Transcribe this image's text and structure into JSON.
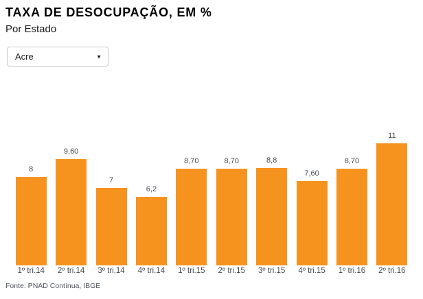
{
  "filter": {
    "selected": "Acre",
    "options": [
      "Acre"
    ]
  },
  "icons": {
    "select_caret": "▼"
  },
  "chart_data": {
    "type": "bar",
    "title": "TAXA DE DESOCUPAÇÃO, EM %",
    "subtitle": "Por Estado",
    "categories": [
      "1º tri.14",
      "2º tri.14",
      "3º tri.14",
      "4º tri.14",
      "1º tri.15",
      "2º tri.15",
      "3º tri.15",
      "4º tri.15",
      "1º tri.16",
      "2º tri.16"
    ],
    "values": [
      8,
      9.6,
      7,
      6.2,
      8.7,
      8.7,
      8.8,
      7.6,
      8.7,
      11
    ],
    "value_labels": [
      "8",
      "9,60",
      "7",
      "6,2",
      "8,70",
      "8,70",
      "8,8",
      "7,60",
      "8,70",
      "11"
    ],
    "xlabel": "",
    "ylabel": "",
    "ylim": [
      0,
      11
    ],
    "grid": false,
    "legend": "none",
    "bar_color": "#F6931E",
    "source": "Fonte: PNAD Contínua, IBGE"
  }
}
